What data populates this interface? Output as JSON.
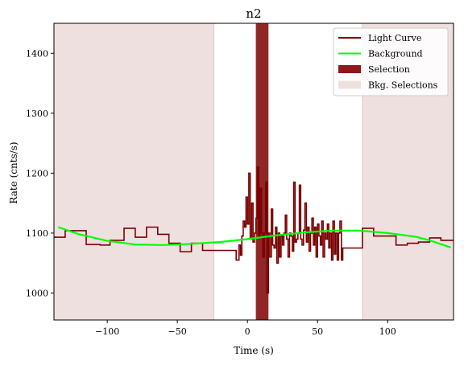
{
  "chart_data": {
    "type": "line",
    "title": "n2",
    "xlabel": "Time (s)",
    "ylabel": "Rate (cnts/s)",
    "xlim": [
      -138,
      147
    ],
    "ylim": [
      955,
      1450
    ],
    "xticks": [
      -100,
      -50,
      0,
      50,
      100
    ],
    "xtick_labels": [
      "−100",
      "−50",
      "0",
      "50",
      "100"
    ],
    "yticks": [
      1000,
      1100,
      1200,
      1300,
      1400
    ],
    "ytick_labels": [
      "1000",
      "1100",
      "1200",
      "1300",
      "1400"
    ],
    "grid": false,
    "legend_position": "top-right",
    "legend": [
      {
        "label": "Light Curve",
        "kind": "line",
        "color": "#7a0000"
      },
      {
        "label": "Background",
        "kind": "line",
        "color": "#00ff00"
      },
      {
        "label": "Selection",
        "kind": "patch",
        "color": "#8b1a1a"
      },
      {
        "label": "Bkg. Selections",
        "kind": "patch",
        "color": "#efe0e0"
      }
    ],
    "bkg_selections": [
      [
        -138,
        -24
      ],
      [
        82,
        147
      ]
    ],
    "selection": [
      6,
      15
    ],
    "light_curve": {
      "color": "#7a0000",
      "coarse_left": {
        "edges": [
          -138,
          -130,
          -115,
          -105,
          -98,
          -88,
          -80,
          -72,
          -64,
          -56,
          -48,
          -40,
          -32,
          -24
        ],
        "values": [
          1093,
          1104,
          1081,
          1080,
          1088,
          1108,
          1093,
          1110,
          1098,
          1083,
          1069,
          1083,
          1071
        ]
      },
      "fine_mid": {
        "edges": [
          -24,
          -8,
          -6,
          -5,
          -4,
          -3,
          -2,
          -1,
          0,
          1,
          2,
          3,
          4,
          5,
          6,
          7,
          8,
          9,
          10,
          11,
          12,
          13,
          14,
          15,
          16,
          17,
          18,
          19,
          20,
          21,
          22,
          23,
          24,
          25,
          26,
          27,
          28,
          29,
          30,
          31,
          32,
          33,
          34,
          35,
          36,
          37,
          38,
          39,
          40,
          41,
          42,
          43,
          44,
          45,
          46,
          47,
          48,
          49,
          50,
          51,
          52,
          53,
          54,
          55,
          56,
          57,
          58,
          59,
          60,
          61,
          62,
          63,
          64,
          65,
          66,
          67,
          68,
          70
        ],
        "values": [
          1071,
          1055,
          1080,
          1063,
          1095,
          1120,
          1110,
          1160,
          1115,
          1200,
          1090,
          1150,
          1085,
          1100,
          1125,
          1210,
          1095,
          1175,
          1100,
          1060,
          1100,
          1185,
          1000,
          1100,
          1060,
          1140,
          1080,
          1075,
          1110,
          1050,
          1100,
          1060,
          1095,
          1080,
          1100,
          1130,
          1090,
          1060,
          1100,
          1095,
          1070,
          1185,
          1085,
          1090,
          1100,
          1180,
          1090,
          1080,
          1105,
          1150,
          1085,
          1110,
          1070,
          1100,
          1125,
          1080,
          1110,
          1060,
          1115,
          1095,
          1080,
          1120,
          1060,
          1100,
          1090,
          1115,
          1075,
          1100,
          1055,
          1120,
          1065,
          1100,
          1055,
          1100,
          1120,
          1055,
          1075
        ]
      },
      "coarse_right": {
        "edges": [
          70,
          82,
          90,
          98,
          106,
          114,
          122,
          130,
          138,
          147
        ],
        "values": [
          1075,
          1108,
          1095,
          1095,
          1080,
          1083,
          1085,
          1092,
          1088
        ]
      }
    },
    "background": {
      "color": "#00ff00",
      "x": [
        -135,
        -120,
        -100,
        -80,
        -60,
        -40,
        -20,
        0,
        20,
        40,
        60,
        70,
        80,
        100,
        120,
        130,
        145
      ],
      "y": [
        1110,
        1098,
        1087,
        1081,
        1080,
        1082,
        1085,
        1090,
        1096,
        1101,
        1104,
        1104,
        1104,
        1100,
        1094,
        1088,
        1076
      ]
    }
  }
}
